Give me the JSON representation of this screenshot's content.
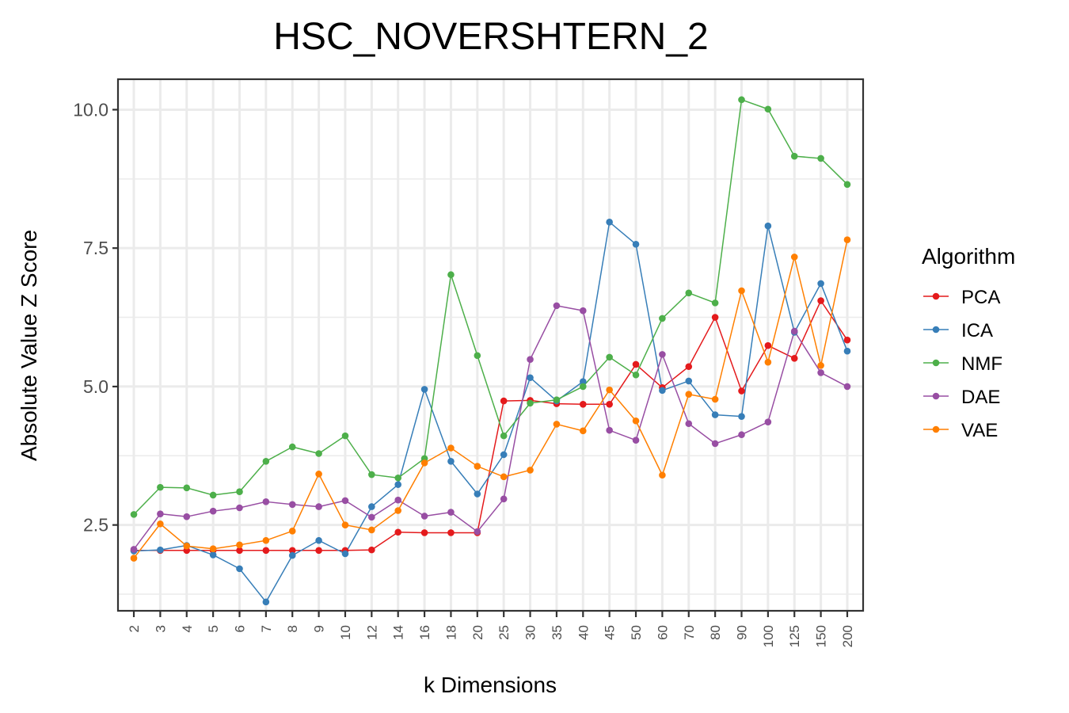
{
  "chart_data": {
    "type": "line",
    "title": "HSC_NOVERSHTERN_2",
    "xlabel": "k Dimensions",
    "ylabel": "Absolute Value Z Score",
    "categories": [
      "2",
      "3",
      "4",
      "5",
      "6",
      "7",
      "8",
      "9",
      "10",
      "12",
      "14",
      "16",
      "18",
      "20",
      "25",
      "30",
      "35",
      "40",
      "45",
      "50",
      "60",
      "70",
      "80",
      "90",
      "100",
      "125",
      "150",
      "200"
    ],
    "ylim": [
      0.95,
      10.55
    ],
    "yticks": [
      2.5,
      5.0,
      7.5,
      10.0
    ],
    "ytick_labels": [
      "2.5",
      "5.0",
      "7.5",
      "10.0"
    ],
    "grid": true,
    "legend": {
      "title": "Algorithm",
      "position": "right"
    },
    "series": [
      {
        "name": "PCA",
        "color": "#E41A1C",
        "values": [
          2.04,
          2.04,
          2.04,
          2.04,
          2.04,
          2.04,
          2.04,
          2.04,
          2.04,
          2.05,
          2.37,
          2.36,
          2.36,
          2.36,
          4.74,
          4.75,
          4.69,
          4.68,
          4.68,
          5.4,
          4.98,
          5.36,
          6.25,
          4.92,
          5.74,
          5.51,
          6.55,
          5.84
        ]
      },
      {
        "name": "ICA",
        "color": "#377EB8",
        "values": [
          2.03,
          2.05,
          2.13,
          1.96,
          1.71,
          1.11,
          1.95,
          2.22,
          1.98,
          2.83,
          3.23,
          4.95,
          3.65,
          3.06,
          3.77,
          5.16,
          4.74,
          5.09,
          7.97,
          7.57,
          4.93,
          5.1,
          4.49,
          4.46,
          7.9,
          5.98,
          6.86,
          5.64
        ]
      },
      {
        "name": "NMF",
        "color": "#4DAF4A",
        "values": [
          2.69,
          3.18,
          3.17,
          3.04,
          3.1,
          3.65,
          3.91,
          3.79,
          4.11,
          3.41,
          3.35,
          3.7,
          7.02,
          5.56,
          4.11,
          4.7,
          4.76,
          5.0,
          5.53,
          5.21,
          6.23,
          6.69,
          6.51,
          10.18,
          10.01,
          9.16,
          9.12,
          8.65
        ]
      },
      {
        "name": "DAE",
        "color": "#984EA3",
        "values": [
          2.06,
          2.7,
          2.65,
          2.75,
          2.81,
          2.92,
          2.87,
          2.83,
          2.94,
          2.64,
          2.95,
          2.66,
          2.73,
          2.38,
          2.97,
          5.49,
          6.46,
          6.37,
          4.21,
          4.03,
          5.58,
          4.33,
          3.97,
          4.13,
          4.36,
          6.0,
          5.25,
          5.0
        ]
      },
      {
        "name": "VAE",
        "color": "#FF7F00",
        "values": [
          1.9,
          2.52,
          2.12,
          2.07,
          2.14,
          2.22,
          2.39,
          3.42,
          2.5,
          2.41,
          2.76,
          3.62,
          3.89,
          3.56,
          3.37,
          3.49,
          4.32,
          4.2,
          4.94,
          4.38,
          3.4,
          4.86,
          4.77,
          6.73,
          5.44,
          7.34,
          5.38,
          7.65
        ]
      }
    ]
  }
}
